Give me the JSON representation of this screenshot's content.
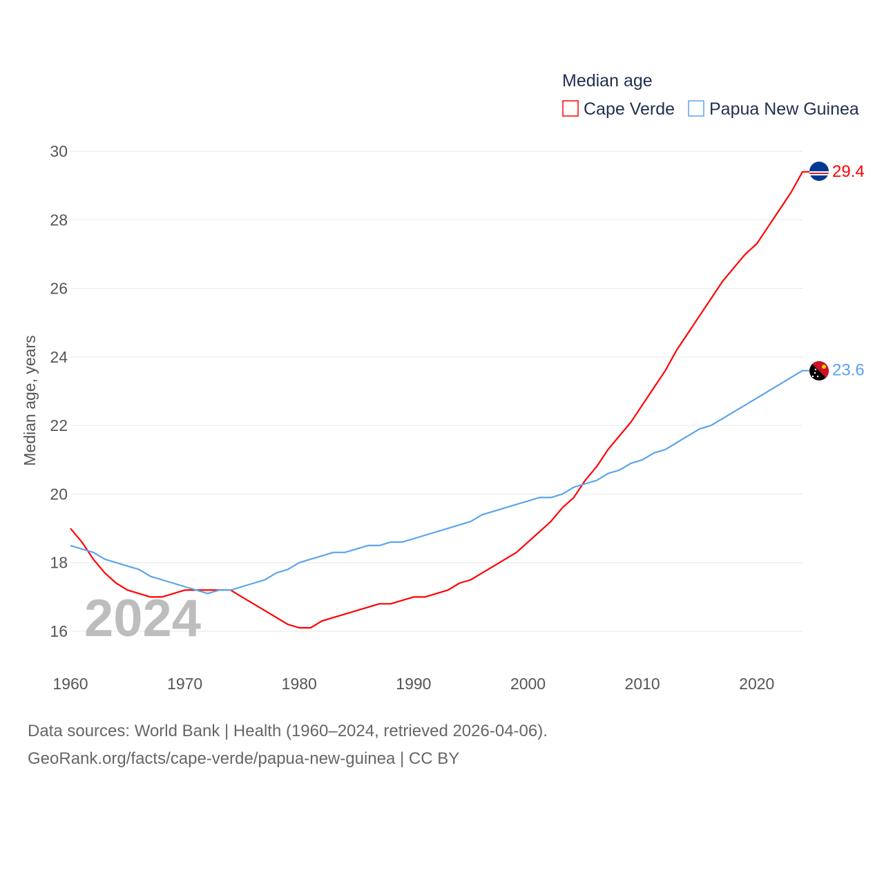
{
  "chart_data": {
    "type": "line",
    "title": "Median age",
    "ylabel": "Median age, years",
    "xlabel": "",
    "xlim": [
      1960,
      2024
    ],
    "ylim": [
      15,
      30
    ],
    "x_ticks": [
      1960,
      1970,
      1980,
      1990,
      2000,
      2010,
      2020
    ],
    "y_ticks": [
      16,
      18,
      20,
      22,
      24,
      26,
      28,
      30
    ],
    "grid": true,
    "legend_position": "top-right",
    "year_watermark": "2024",
    "x": [
      1960,
      1961,
      1962,
      1963,
      1964,
      1965,
      1966,
      1967,
      1968,
      1969,
      1970,
      1971,
      1972,
      1973,
      1974,
      1975,
      1976,
      1977,
      1978,
      1979,
      1980,
      1981,
      1982,
      1983,
      1984,
      1985,
      1986,
      1987,
      1988,
      1989,
      1990,
      1991,
      1992,
      1993,
      1994,
      1995,
      1996,
      1997,
      1998,
      1999,
      2000,
      2001,
      2002,
      2003,
      2004,
      2005,
      2006,
      2007,
      2008,
      2009,
      2010,
      2011,
      2012,
      2013,
      2014,
      2015,
      2016,
      2017,
      2018,
      2019,
      2020,
      2021,
      2022,
      2023,
      2024
    ],
    "series": [
      {
        "name": "Cape Verde",
        "color": "#ff0000",
        "end_label": "29.4",
        "values": [
          19.0,
          18.6,
          18.1,
          17.7,
          17.4,
          17.2,
          17.1,
          17.0,
          17.0,
          17.1,
          17.2,
          17.2,
          17.2,
          17.2,
          17.2,
          17.0,
          16.8,
          16.6,
          16.4,
          16.2,
          16.1,
          16.1,
          16.3,
          16.4,
          16.5,
          16.6,
          16.7,
          16.8,
          16.8,
          16.9,
          17.0,
          17.0,
          17.1,
          17.2,
          17.4,
          17.5,
          17.7,
          17.9,
          18.1,
          18.3,
          18.6,
          18.9,
          19.2,
          19.6,
          19.9,
          20.4,
          20.8,
          21.3,
          21.7,
          22.1,
          22.6,
          23.1,
          23.6,
          24.2,
          24.7,
          25.2,
          25.7,
          26.2,
          26.6,
          27.0,
          27.3,
          27.8,
          28.3,
          28.8,
          29.4
        ]
      },
      {
        "name": "Papua New Guinea",
        "color": "#5ba4ec",
        "end_label": "23.6",
        "values": [
          18.5,
          18.4,
          18.3,
          18.1,
          18.0,
          17.9,
          17.8,
          17.6,
          17.5,
          17.4,
          17.3,
          17.2,
          17.1,
          17.2,
          17.2,
          17.3,
          17.4,
          17.5,
          17.7,
          17.8,
          18.0,
          18.1,
          18.2,
          18.3,
          18.3,
          18.4,
          18.5,
          18.5,
          18.6,
          18.6,
          18.7,
          18.8,
          18.9,
          19.0,
          19.1,
          19.2,
          19.4,
          19.5,
          19.6,
          19.7,
          19.8,
          19.9,
          19.9,
          20.0,
          20.2,
          20.3,
          20.4,
          20.6,
          20.7,
          20.9,
          21.0,
          21.2,
          21.3,
          21.5,
          21.7,
          21.9,
          22.0,
          22.2,
          22.4,
          22.6,
          22.8,
          23.0,
          23.2,
          23.4,
          23.6
        ]
      }
    ]
  },
  "footer": {
    "line1": "Data sources: World Bank | Health (1960–2024, retrieved 2026-04-06).",
    "line2": "GeoRank.org/facts/cape-verde/papua-new-guinea | CC BY"
  }
}
